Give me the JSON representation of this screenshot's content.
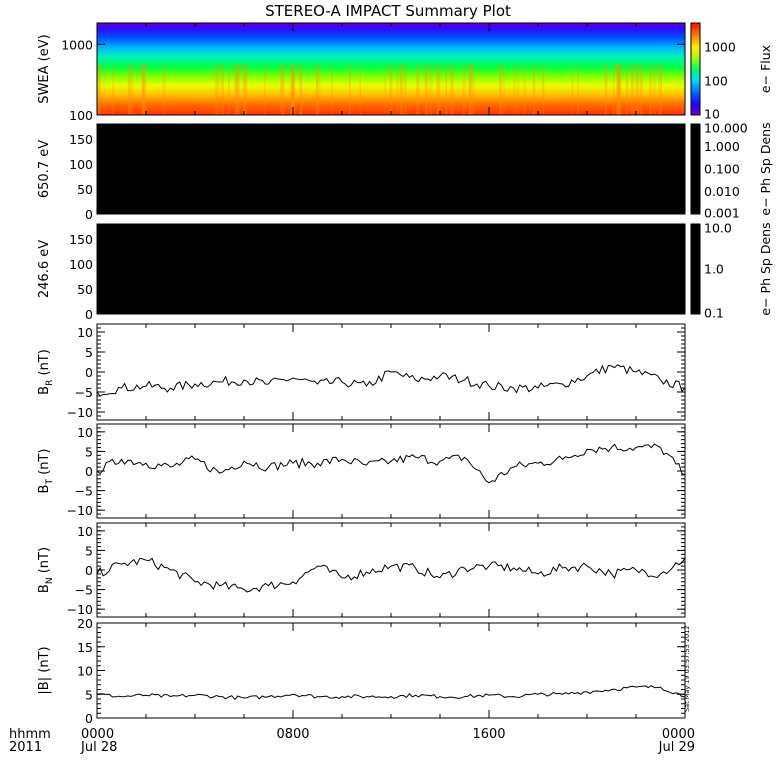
{
  "title": "STEREO-A IMPACT Summary Plot",
  "timestamp": "Sat May 19 03:57:53 2012",
  "x_axis": {
    "ticks": [
      {
        "hours": 0,
        "label": "0000",
        "sublabel": "Jul 28"
      },
      {
        "hours": 8,
        "label": "0800",
        "sublabel": ""
      },
      {
        "hours": 16,
        "label": "1600",
        "sublabel": ""
      },
      {
        "hours": 24,
        "label": "0000",
        "sublabel": "Jul 29"
      }
    ],
    "corner_label_1": "hhmm",
    "corner_label_2": "2011"
  },
  "chart_data": [
    {
      "type": "heatmap",
      "id": "swea",
      "ylabel": "SWEA (eV)",
      "y_scale": "log",
      "ylim": [
        100,
        2000
      ],
      "yticks": [
        100,
        1000
      ],
      "ytick_labels": [
        "100",
        "1000"
      ],
      "colorbar": {
        "label": "e− Flux",
        "scale": "log",
        "range": [
          10,
          5000
        ],
        "ticks": [
          10,
          100,
          1000
        ],
        "tick_labels": [
          "10",
          "100",
          "1000"
        ]
      },
      "description_values": {
        "low_energy_flux_approx": 3000,
        "high_energy_flux_approx": 10
      }
    },
    {
      "type": "heatmap",
      "id": "pad650",
      "ylabel": "650.7 eV",
      "ylim": [
        0,
        180
      ],
      "yticks": [
        0,
        50,
        100,
        150
      ],
      "ytick_labels": [
        "0",
        "50",
        "100",
        "150"
      ],
      "fill_color": "#000000",
      "colorbar": {
        "label": "e− Ph Sp Dens",
        "scale": "log",
        "range": [
          0.001,
          10
        ],
        "ticks": [
          0.001,
          0.01,
          0.1,
          1,
          10
        ],
        "tick_labels": [
          "0.001",
          "0.010",
          "0.100",
          "1.000",
          "10.000"
        ]
      }
    },
    {
      "type": "heatmap",
      "id": "pad246",
      "ylabel": "246.6 eV",
      "ylim": [
        0,
        180
      ],
      "yticks": [
        0,
        50,
        100,
        150
      ],
      "ytick_labels": [
        "0",
        "50",
        "100",
        "150"
      ],
      "fill_color": "#000000",
      "colorbar": {
        "label": "e− Ph Sp Dens",
        "scale": "log",
        "range": [
          0.1,
          10
        ],
        "ticks": [
          0.1,
          1,
          10
        ],
        "tick_labels": [
          "0.1",
          "1.0",
          "10.0"
        ]
      }
    },
    {
      "type": "line",
      "id": "br",
      "ylabel": "B_R (nT)",
      "ylabel_main": "B",
      "ylabel_sub": "R",
      "ylabel_unit": "(nT)",
      "ylim": [
        -12,
        12
      ],
      "yticks": [
        -10,
        -5,
        0,
        5,
        10
      ],
      "ytick_labels": [
        "−10",
        "−5",
        "0",
        "5",
        "10"
      ],
      "x_hours": [
        0,
        1,
        2,
        3,
        4,
        5,
        6,
        7,
        8,
        9,
        10,
        11,
        12,
        13,
        14,
        15,
        16,
        17,
        18,
        19,
        20,
        21,
        22,
        23,
        24
      ],
      "values": [
        -5,
        -4,
        -3.5,
        -4,
        -3,
        -2.5,
        -2,
        -3,
        -1.5,
        -3,
        -2.5,
        -3.5,
        0,
        -2,
        -1,
        -2,
        -3.5,
        -4,
        -4,
        -3,
        -1,
        1.5,
        0,
        -2,
        -4
      ]
    },
    {
      "type": "line",
      "id": "bt",
      "ylabel": "B_T (nT)",
      "ylabel_main": "B",
      "ylabel_sub": "T",
      "ylabel_unit": "(nT)",
      "ylim": [
        -12,
        12
      ],
      "yticks": [
        -10,
        -5,
        0,
        5,
        10
      ],
      "ytick_labels": [
        "−10",
        "−5",
        "0",
        "5",
        "10"
      ],
      "x_hours": [
        0,
        1,
        2,
        3,
        4,
        5,
        6,
        7,
        8,
        9,
        10,
        11,
        12,
        13,
        14,
        15,
        16,
        17,
        18,
        19,
        20,
        21,
        22,
        23,
        24
      ],
      "values": [
        0,
        3,
        2,
        1,
        3,
        -0.5,
        2.5,
        1,
        2,
        2,
        3,
        1.5,
        2.5,
        3.5,
        2.5,
        3.5,
        -3,
        1,
        2,
        3,
        5.5,
        6,
        6,
        6,
        -1
      ]
    },
    {
      "type": "line",
      "id": "bn",
      "ylabel": "B_N (nT)",
      "ylabel_main": "B",
      "ylabel_sub": "N",
      "ylabel_unit": "(nT)",
      "ylim": [
        -12,
        12
      ],
      "yticks": [
        -10,
        -5,
        0,
        5,
        10
      ],
      "ytick_labels": [
        "−10",
        "−5",
        "0",
        "5",
        "10"
      ],
      "x_hours": [
        0,
        1,
        2,
        3,
        4,
        5,
        6,
        7,
        8,
        9,
        10,
        11,
        12,
        13,
        14,
        15,
        16,
        17,
        18,
        19,
        20,
        21,
        22,
        23,
        24
      ],
      "values": [
        -1,
        1.5,
        2.5,
        0,
        -3,
        -4,
        -5,
        -4,
        -3,
        1,
        -2,
        -0.5,
        1,
        0.5,
        -2,
        0.5,
        1,
        0.5,
        -1,
        0.5,
        1,
        -1,
        0,
        -1,
        3
      ]
    },
    {
      "type": "line",
      "id": "bmag",
      "ylabel": "|B| (nT)",
      "ylabel_main": "|B|",
      "ylabel_sub": "",
      "ylabel_unit": "(nT)",
      "ylim": [
        0,
        20
      ],
      "yticks": [
        0,
        5,
        10,
        15,
        20
      ],
      "ytick_labels": [
        "0",
        "5",
        "10",
        "15",
        "20"
      ],
      "x_hours": [
        0,
        1,
        2,
        3,
        4,
        5,
        6,
        7,
        8,
        9,
        10,
        11,
        12,
        13,
        14,
        15,
        16,
        17,
        18,
        19,
        20,
        21,
        22,
        23,
        24
      ],
      "values": [
        5,
        4.5,
        4.8,
        4.5,
        4.8,
        4.5,
        4.2,
        4.5,
        5,
        4.5,
        4.5,
        4.5,
        4.5,
        4.8,
        4.5,
        4.5,
        4.8,
        4.5,
        5,
        5,
        5.5,
        6,
        6.5,
        6.5,
        4.5
      ]
    }
  ],
  "colors": {
    "background": "#ffffff",
    "axes": "#000000",
    "line": "#000000",
    "pad_fill": "#000000"
  }
}
